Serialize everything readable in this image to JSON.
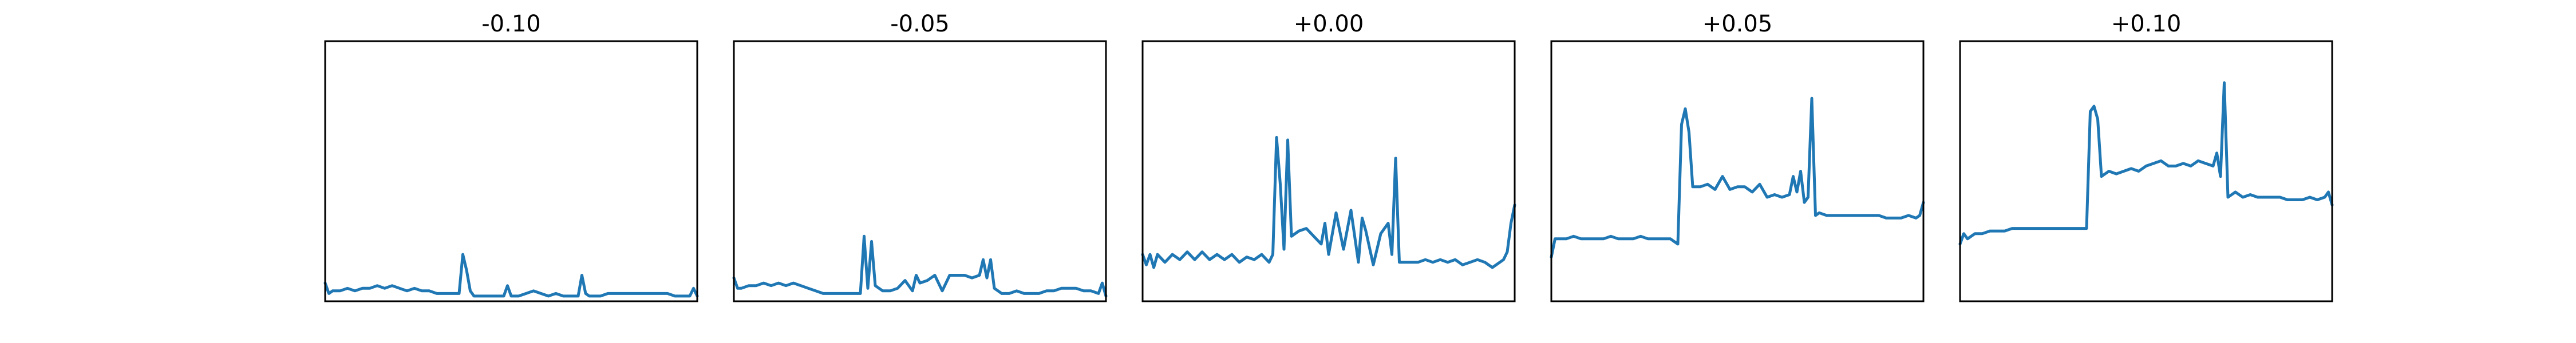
{
  "colors": {
    "line": "#1f77b4",
    "frame": "#000000",
    "background": "#ffffff"
  },
  "chart_data": [
    {
      "type": "line",
      "title": "-0.10",
      "xlim": [
        0,
        100
      ],
      "ylim": [
        0,
        100
      ],
      "axes_visible": false,
      "grid": false,
      "series": [
        {
          "x": [
            0,
            1,
            2,
            4,
            6,
            8,
            10,
            12,
            14,
            16,
            18,
            20,
            22,
            24,
            26,
            28,
            30,
            32,
            34,
            36,
            37,
            38,
            39,
            40,
            42,
            44,
            46,
            48,
            49,
            50,
            52,
            54,
            56,
            58,
            60,
            62,
            64,
            66,
            68,
            69,
            70,
            71,
            72,
            74,
            76,
            78,
            80,
            82,
            84,
            86,
            88,
            90,
            92,
            94,
            96,
            98,
            99,
            100
          ],
          "y": [
            7,
            3,
            4,
            4,
            5,
            4,
            5,
            5,
            6,
            5,
            6,
            5,
            4,
            5,
            4,
            4,
            3,
            3,
            3,
            3,
            18,
            12,
            4,
            2,
            2,
            2,
            2,
            2,
            6,
            2,
            2,
            3,
            4,
            3,
            2,
            3,
            2,
            2,
            2,
            10,
            3,
            2,
            2,
            2,
            3,
            3,
            3,
            3,
            3,
            3,
            3,
            3,
            3,
            2,
            2,
            2,
            5,
            2
          ]
        }
      ]
    },
    {
      "type": "line",
      "title": "-0.05",
      "xlim": [
        0,
        100
      ],
      "ylim": [
        0,
        100
      ],
      "axes_visible": false,
      "grid": false,
      "series": [
        {
          "x": [
            0,
            1,
            2,
            4,
            6,
            8,
            10,
            12,
            14,
            16,
            18,
            20,
            22,
            24,
            26,
            28,
            30,
            32,
            34,
            35,
            36,
            37,
            38,
            40,
            42,
            44,
            46,
            48,
            49,
            50,
            52,
            54,
            56,
            58,
            60,
            62,
            64,
            66,
            67,
            68,
            69,
            70,
            72,
            74,
            76,
            78,
            80,
            82,
            84,
            86,
            88,
            90,
            92,
            94,
            96,
            98,
            99,
            100
          ],
          "y": [
            9,
            5,
            5,
            6,
            6,
            7,
            6,
            7,
            6,
            7,
            6,
            5,
            4,
            3,
            3,
            3,
            3,
            3,
            3,
            25,
            5,
            23,
            6,
            4,
            4,
            5,
            8,
            4,
            10,
            7,
            8,
            10,
            4,
            10,
            10,
            10,
            9,
            10,
            16,
            9,
            16,
            5,
            3,
            3,
            4,
            3,
            3,
            3,
            4,
            4,
            5,
            5,
            5,
            4,
            4,
            3,
            7,
            2
          ]
        }
      ]
    },
    {
      "type": "line",
      "title": "+0.00",
      "xlim": [
        0,
        100
      ],
      "ylim": [
        0,
        100
      ],
      "axes_visible": false,
      "grid": false,
      "series": [
        {
          "x": [
            0,
            1,
            2,
            3,
            4,
            6,
            8,
            10,
            12,
            14,
            16,
            18,
            20,
            22,
            24,
            26,
            28,
            30,
            32,
            34,
            35,
            36,
            37,
            38,
            39,
            40,
            42,
            44,
            46,
            48,
            49,
            50,
            52,
            54,
            56,
            58,
            59,
            60,
            62,
            64,
            66,
            67,
            68,
            69,
            70,
            72,
            74,
            76,
            78,
            80,
            82,
            84,
            86,
            88,
            90,
            92,
            94,
            96,
            97,
            98,
            99,
            100
          ],
          "y": [
            18,
            14,
            18,
            13,
            18,
            15,
            18,
            16,
            19,
            16,
            19,
            16,
            18,
            16,
            18,
            15,
            17,
            16,
            18,
            15,
            18,
            63,
            45,
            20,
            62,
            25,
            27,
            28,
            25,
            22,
            30,
            18,
            34,
            20,
            35,
            15,
            32,
            27,
            14,
            26,
            30,
            18,
            55,
            15,
            15,
            15,
            15,
            16,
            15,
            16,
            15,
            16,
            14,
            15,
            16,
            15,
            13,
            15,
            16,
            19,
            30,
            37
          ]
        }
      ]
    },
    {
      "type": "line",
      "title": "+0.05",
      "xlim": [
        0,
        100
      ],
      "ylim": [
        0,
        100
      ],
      "axes_visible": false,
      "grid": false,
      "series": [
        {
          "x": [
            0,
            1,
            2,
            4,
            6,
            8,
            10,
            12,
            14,
            16,
            18,
            20,
            22,
            24,
            26,
            28,
            30,
            32,
            34,
            35,
            36,
            37,
            38,
            40,
            42,
            44,
            46,
            48,
            50,
            52,
            54,
            56,
            58,
            60,
            62,
            64,
            65,
            66,
            67,
            68,
            69,
            70,
            71,
            72,
            74,
            76,
            78,
            80,
            82,
            84,
            86,
            88,
            90,
            92,
            94,
            96,
            98,
            99,
            100
          ],
          "y": [
            17,
            24,
            24,
            24,
            25,
            24,
            24,
            24,
            24,
            25,
            24,
            24,
            24,
            25,
            24,
            24,
            24,
            24,
            22,
            68,
            74,
            65,
            44,
            44,
            45,
            43,
            48,
            43,
            44,
            44,
            42,
            45,
            40,
            41,
            40,
            41,
            48,
            42,
            50,
            38,
            40,
            78,
            33,
            34,
            33,
            33,
            33,
            33,
            33,
            33,
            33,
            33,
            32,
            32,
            32,
            33,
            32,
            33,
            38
          ]
        }
      ]
    },
    {
      "type": "line",
      "title": "+0.10",
      "xlim": [
        0,
        100
      ],
      "ylim": [
        0,
        100
      ],
      "axes_visible": false,
      "grid": false,
      "series": [
        {
          "x": [
            0,
            1,
            2,
            4,
            6,
            8,
            10,
            12,
            14,
            16,
            18,
            20,
            22,
            24,
            26,
            28,
            30,
            32,
            34,
            35,
            36,
            37,
            38,
            40,
            42,
            44,
            46,
            48,
            50,
            52,
            54,
            56,
            58,
            60,
            62,
            64,
            66,
            68,
            69,
            70,
            71,
            72,
            74,
            76,
            78,
            80,
            82,
            84,
            86,
            88,
            90,
            92,
            94,
            96,
            98,
            99,
            100
          ],
          "y": [
            22,
            26,
            24,
            26,
            26,
            27,
            27,
            27,
            28,
            28,
            28,
            28,
            28,
            28,
            28,
            28,
            28,
            28,
            28,
            73,
            75,
            70,
            48,
            50,
            49,
            50,
            51,
            50,
            52,
            53,
            54,
            52,
            52,
            53,
            52,
            54,
            53,
            52,
            57,
            48,
            84,
            40,
            42,
            40,
            41,
            40,
            40,
            40,
            40,
            39,
            39,
            39,
            40,
            39,
            40,
            42,
            37
          ]
        }
      ]
    }
  ]
}
